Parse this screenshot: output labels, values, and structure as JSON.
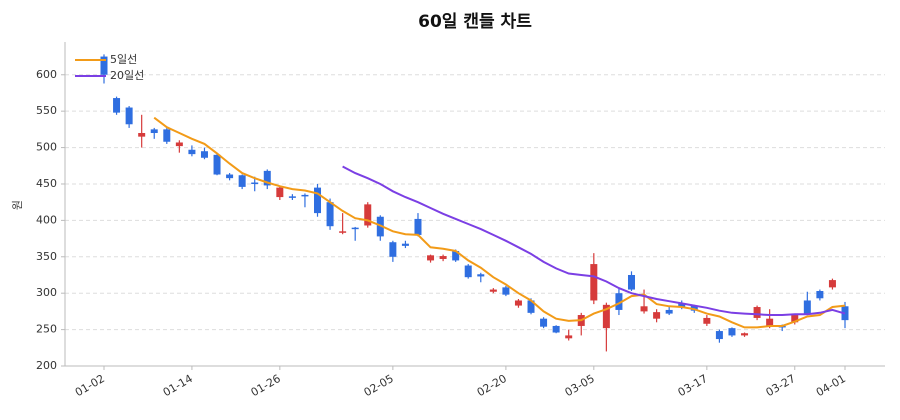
{
  "chart_data": {
    "type": "candlestick",
    "title": "60일 캔들 차트",
    "y_label": "원",
    "categories": [
      "01-02",
      null,
      null,
      null,
      null,
      null,
      null,
      "01-14",
      null,
      null,
      null,
      null,
      null,
      null,
      "01-26",
      null,
      null,
      null,
      null,
      null,
      null,
      null,
      null,
      "02-05",
      null,
      null,
      null,
      null,
      null,
      null,
      null,
      null,
      "02-20",
      null,
      null,
      null,
      null,
      null,
      null,
      "03-05",
      null,
      null,
      null,
      null,
      null,
      null,
      null,
      null,
      "03-17",
      null,
      null,
      null,
      null,
      null,
      null,
      "03-27",
      null,
      null,
      null,
      "04-01"
    ],
    "open": [
      625,
      568,
      555,
      515,
      525,
      525,
      502,
      497,
      495,
      490,
      463,
      462,
      452,
      468,
      432,
      433,
      435,
      445,
      425,
      383,
      390,
      393,
      405,
      370,
      368,
      402,
      345,
      347,
      358,
      338,
      326,
      302,
      308,
      283,
      290,
      265,
      255,
      238,
      255,
      290,
      252,
      300,
      325,
      275,
      265,
      277,
      286,
      283,
      258,
      248,
      252,
      242,
      266,
      255,
      255,
      260,
      290,
      303,
      308,
      282
    ],
    "high": [
      628,
      570,
      557,
      545,
      527,
      528,
      510,
      503,
      500,
      493,
      465,
      463,
      460,
      470,
      447,
      436,
      437,
      450,
      430,
      410,
      391,
      425,
      407,
      372,
      372,
      410,
      353,
      353,
      360,
      340,
      328,
      307,
      310,
      292,
      293,
      267,
      256,
      250,
      273,
      355,
      287,
      306,
      330,
      305,
      278,
      283,
      290,
      284,
      270,
      250,
      253,
      246,
      283,
      278,
      257,
      272,
      302,
      305,
      320,
      288
    ],
    "low": [
      588,
      545,
      527,
      500,
      512,
      505,
      493,
      488,
      484,
      462,
      455,
      443,
      440,
      443,
      428,
      428,
      418,
      405,
      387,
      381,
      372,
      390,
      372,
      343,
      362,
      378,
      342,
      344,
      343,
      320,
      315,
      300,
      296,
      280,
      271,
      252,
      245,
      235,
      242,
      285,
      220,
      270,
      303,
      272,
      260,
      270,
      278,
      273,
      255,
      232,
      240,
      240,
      263,
      252,
      248,
      257,
      270,
      290,
      305,
      252
    ],
    "close": [
      600,
      548,
      532,
      520,
      520,
      508,
      507,
      491,
      486,
      463,
      458,
      446,
      450,
      448,
      445,
      431,
      433,
      410,
      392,
      385,
      388,
      422,
      378,
      350,
      365,
      380,
      352,
      351,
      345,
      322,
      323,
      305,
      298,
      290,
      273,
      254,
      246,
      242,
      270,
      340,
      284,
      277,
      305,
      282,
      274,
      272,
      281,
      276,
      266,
      237,
      242,
      245,
      281,
      265,
      253,
      270,
      272,
      293,
      318,
      263
    ],
    "up_color": "#d63b3b",
    "down_color": "#2f6ee0",
    "series": [
      {
        "name": "5일선",
        "color": "#f29b18",
        "values": [
          null,
          null,
          null,
          null,
          541,
          528,
          520,
          512,
          505,
          492,
          478,
          465,
          458,
          452,
          447,
          443,
          441,
          437,
          425,
          413,
          403,
          400,
          393,
          385,
          381,
          380,
          363,
          361,
          358,
          345,
          335,
          322,
          312,
          300,
          290,
          275,
          265,
          262,
          263,
          272,
          278,
          286,
          296,
          298,
          285,
          282,
          281,
          278,
          272,
          268,
          260,
          253,
          253,
          255,
          255,
          261,
          268,
          270,
          281,
          283
        ]
      },
      {
        "name": "20일선",
        "color": "#7b3fe4",
        "values": [
          null,
          null,
          null,
          null,
          null,
          null,
          null,
          null,
          null,
          null,
          null,
          null,
          null,
          null,
          null,
          null,
          null,
          null,
          null,
          474,
          465,
          458,
          450,
          440,
          432,
          425,
          417,
          409,
          402,
          395,
          388,
          380,
          372,
          363,
          354,
          343,
          334,
          327,
          325,
          323,
          316,
          307,
          300,
          296,
          292,
          289,
          286,
          283,
          280,
          276,
          273,
          272,
          271,
          270,
          270,
          271,
          271,
          273,
          277,
          272
        ]
      }
    ],
    "ylim": [
      200,
      645
    ],
    "yticks": [
      200,
      250,
      300,
      350,
      400,
      450,
      500,
      550,
      600
    ],
    "grid": true,
    "legend": "upper-left"
  }
}
